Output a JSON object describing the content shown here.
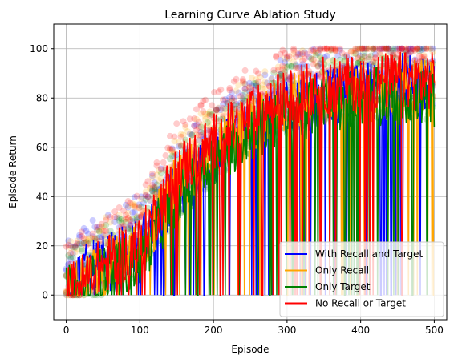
{
  "chart_data": {
    "type": "line",
    "title": "Learning Curve Ablation Study",
    "xlabel": "Episode",
    "ylabel": "Episode Return",
    "xlim": [
      -17,
      517
    ],
    "ylim": [
      -10,
      110
    ],
    "xticks": [
      0,
      100,
      200,
      300,
      400,
      500
    ],
    "yticks": [
      0,
      20,
      40,
      60,
      80,
      100
    ],
    "grid": true,
    "legend": "lower-right",
    "scatter_alpha": 0.2,
    "series": [
      {
        "name": "With Recall and Target",
        "color": "#0000ff",
        "x": [
          0,
          20,
          50,
          100,
          150,
          200,
          250,
          300,
          350,
          400,
          450,
          500
        ],
        "y": [
          0,
          8,
          12,
          20,
          42,
          55,
          68,
          76,
          80,
          82,
          87,
          86
        ]
      },
      {
        "name": "Only Recall",
        "color": "#ffa500",
        "x": [
          0,
          20,
          50,
          100,
          150,
          200,
          250,
          300,
          350,
          400,
          450,
          500
        ],
        "y": [
          0,
          5,
          10,
          18,
          45,
          58,
          70,
          78,
          80,
          82,
          83,
          84
        ]
      },
      {
        "name": "Only Target",
        "color": "#008000",
        "x": [
          0,
          20,
          50,
          100,
          150,
          200,
          250,
          300,
          350,
          400,
          450,
          500
        ],
        "y": [
          0,
          2,
          8,
          15,
          40,
          55,
          66,
          72,
          78,
          80,
          81,
          80
        ]
      },
      {
        "name": "No Recall or Target",
        "color": "#ff0000",
        "x": [
          0,
          20,
          50,
          100,
          150,
          200,
          250,
          300,
          350,
          400,
          450,
          500
        ],
        "y": [
          0,
          5,
          12,
          20,
          50,
          62,
          72,
          80,
          85,
          86,
          87,
          87
        ]
      }
    ]
  }
}
